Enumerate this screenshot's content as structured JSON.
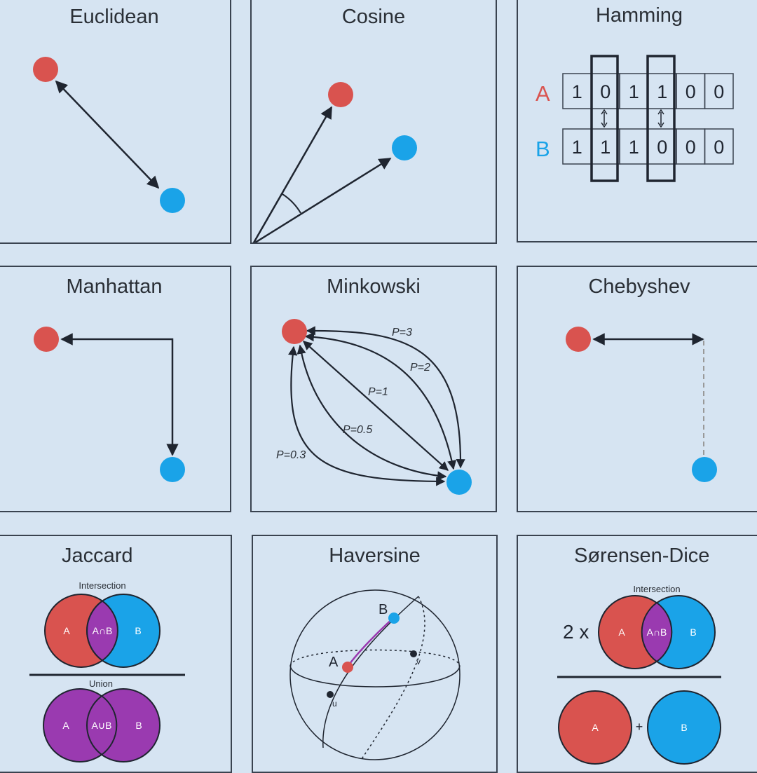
{
  "colors": {
    "red": "#d9534f",
    "blue": "#1aa3e8",
    "purple": "#9a3ab0",
    "line": "#1f2530",
    "background": "#d6e4f2"
  },
  "panels": {
    "euclidean": {
      "title": "Euclidean"
    },
    "cosine": {
      "title": "Cosine"
    },
    "hamming": {
      "title": "Hamming",
      "label_a": "A",
      "label_b": "B",
      "bits_a": [
        "1",
        "0",
        "1",
        "1",
        "0",
        "0"
      ],
      "bits_b": [
        "1",
        "1",
        "1",
        "0",
        "0",
        "0"
      ]
    },
    "manhattan": {
      "title": "Manhattan"
    },
    "minkowski": {
      "title": "Minkowski",
      "labels": [
        "P=3",
        "P=2",
        "P=1",
        "P=0.5",
        "P=0.3"
      ]
    },
    "chebyshev": {
      "title": "Chebyshev"
    },
    "jaccard": {
      "title": "Jaccard",
      "intersection_label": "Intersection",
      "union_label": "Union",
      "a": "A",
      "b": "B",
      "a_and_b": "A∩B",
      "a_or_b": "A∪B"
    },
    "haversine": {
      "title": "Haversine",
      "point_a": "A",
      "point_b": "B",
      "point_u": "u",
      "point_v": "v"
    },
    "sorensen_dice": {
      "title": "Sørensen-Dice",
      "intersection_label": "Intersection",
      "multiplier": "2 x",
      "a": "A",
      "b": "B",
      "a_and_b": "A∩B",
      "plus": "+"
    }
  }
}
